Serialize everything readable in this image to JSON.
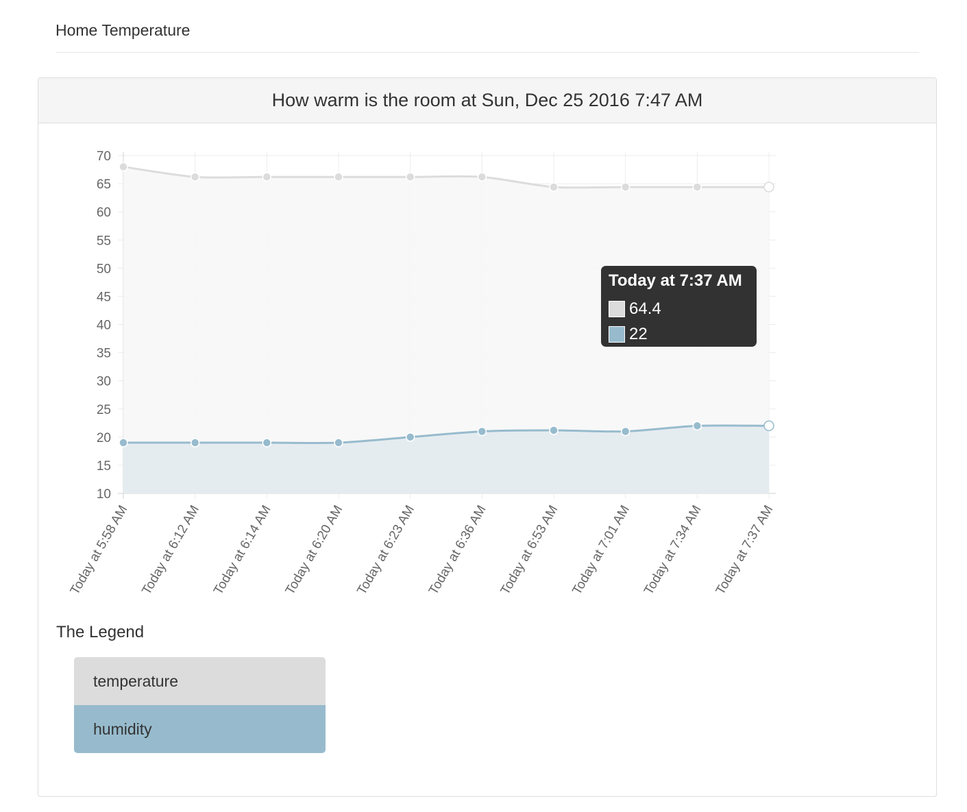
{
  "site": {
    "title": "Home Temperature"
  },
  "panel": {
    "title": "How warm is the room at Sun, Dec 25 2016 7:47 AM"
  },
  "chart_data": {
    "type": "line",
    "x": [
      "Today at 5:58 AM",
      "Today at 6:12 AM",
      "Today at 6:14 AM",
      "Today at 6:20 AM",
      "Today at 6:23 AM",
      "Today at 6:36 AM",
      "Today at 6:53 AM",
      "Today at 7:01 AM",
      "Today at 7:34 AM",
      "Today at 7:37 AM"
    ],
    "ylim": [
      10,
      70
    ],
    "yticks": [
      10,
      15,
      20,
      25,
      30,
      35,
      40,
      45,
      50,
      55,
      60,
      65,
      70
    ],
    "grid": true,
    "series": [
      {
        "name": "temperature",
        "color": "#dcdcdc",
        "fill": "#f7f7f7",
        "values": [
          68.0,
          66.2,
          66.2,
          66.2,
          66.2,
          66.2,
          64.4,
          64.4,
          64.4,
          64.4
        ]
      },
      {
        "name": "humidity",
        "color": "#97bbcd",
        "fill": "#e2eaee",
        "values": [
          19,
          19,
          19,
          19,
          20,
          21,
          21.2,
          21,
          22,
          22
        ]
      }
    ]
  },
  "tooltip": {
    "title": "Today at 7:37 AM",
    "rows": [
      {
        "value": "64.4",
        "color": "#dcdcdc"
      },
      {
        "value": "22",
        "color": "#97bbcd"
      }
    ]
  },
  "legend": {
    "title": "The Legend",
    "items": [
      {
        "label": "temperature",
        "color": "#dcdcdc"
      },
      {
        "label": "humidity",
        "color": "#97bbcd"
      }
    ]
  }
}
